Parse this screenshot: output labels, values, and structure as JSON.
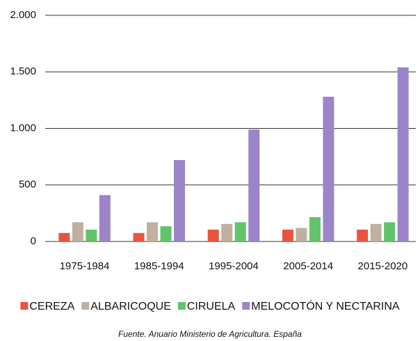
{
  "chart_data": {
    "type": "bar",
    "categories": [
      "1975-1984",
      "1985-1994",
      "1995-2004",
      "2005-2014",
      "2015-2020"
    ],
    "series": [
      {
        "name": "CEREZA",
        "color": "#e8553f",
        "values": [
          75,
          75,
          105,
          105,
          105
        ]
      },
      {
        "name": "ALBARICOQUE",
        "color": "#bfb0a0",
        "values": [
          170,
          170,
          155,
          120,
          155
        ]
      },
      {
        "name": "CIRUELA",
        "color": "#62c46a",
        "values": [
          105,
          135,
          170,
          215,
          170
        ]
      },
      {
        "name": "MELOCOTÓN Y NECTARINA",
        "color": "#9b85c8",
        "values": [
          410,
          720,
          990,
          1280,
          1540
        ]
      }
    ],
    "ylim": [
      0,
      2000
    ],
    "yticks": [
      0,
      500,
      {
        "value": 1000,
        "label": "1.000"
      },
      {
        "value": 1500,
        "label": "1.500"
      },
      {
        "value": 2000,
        "label": "2.000"
      }
    ],
    "grid": true,
    "legend": "bottom",
    "source": "Fuente. Anuario Ministerio de Agricultura. España"
  }
}
